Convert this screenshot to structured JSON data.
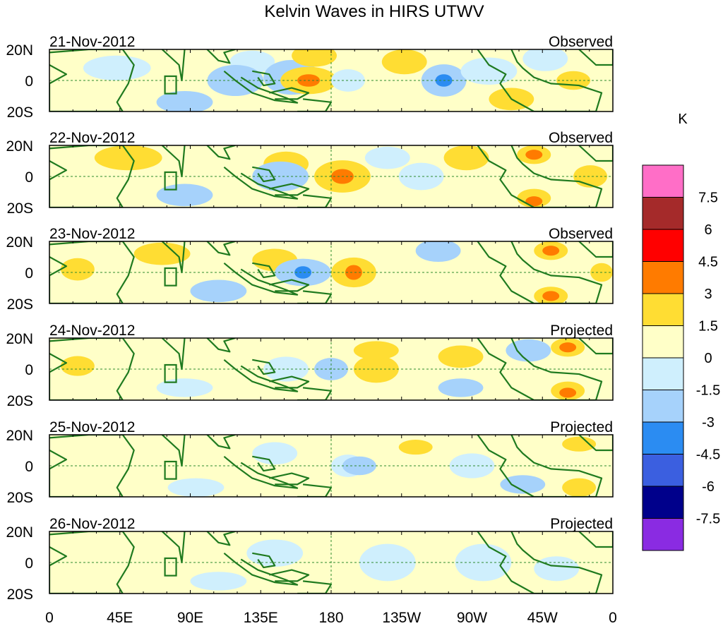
{
  "title": "Kelvin Waves in HIRS UTWV",
  "colors": {
    "coast": "#1f7a1f",
    "equator": "#2e8b2e",
    "pos1": "#ffffc8",
    "pos2": "#ffdd33",
    "pos3": "#ff7b00",
    "neg1": "#cfeffd",
    "neg2": "#a6d2fb",
    "neg3": "#2b8cf2"
  },
  "panels": [
    {
      "date": "21-Nov-2012",
      "status": "Observed"
    },
    {
      "date": "22-Nov-2012",
      "status": "Observed"
    },
    {
      "date": "23-Nov-2012",
      "status": "Observed"
    },
    {
      "date": "24-Nov-2012",
      "status": "Projected"
    },
    {
      "date": "25-Nov-2012",
      "status": "Projected"
    },
    {
      "date": "26-Nov-2012",
      "status": "Projected"
    }
  ],
  "y_ticks": [
    "20N",
    "0",
    "20S"
  ],
  "x_ticks": [
    "0",
    "45E",
    "90E",
    "135E",
    "180",
    "135W",
    "90W",
    "45W",
    "0"
  ],
  "colorbar": {
    "unit": "K",
    "labels": [
      "7.5",
      "6",
      "4.5",
      "3",
      "1.5",
      "0",
      "-1.5",
      "-3",
      "-4.5",
      "-6",
      "-7.5"
    ],
    "colors": [
      "#ff6ec7",
      "#a52a2a",
      "#ff0000",
      "#ff7b00",
      "#ffdd33",
      "#ffffc8",
      "#cfeffd",
      "#a6d2fb",
      "#2b8cf2",
      "#3b5fe0",
      "#00008b",
      "#8a2be2"
    ]
  }
}
